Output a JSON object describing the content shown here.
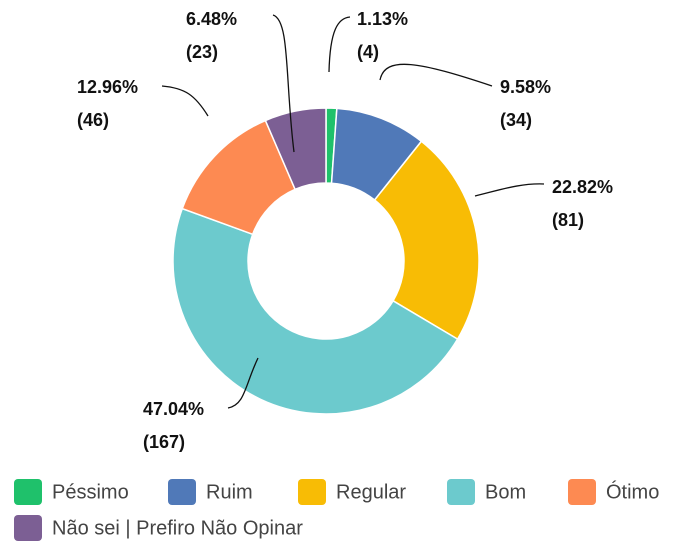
{
  "chart_data": {
    "type": "donut",
    "categories": [
      "Péssimo",
      "Ruim",
      "Regular",
      "Bom",
      "Ótimo",
      "Não sei | Prefiro Não Opinar"
    ],
    "values": [
      1.13,
      9.58,
      22.82,
      47.04,
      12.96,
      6.48
    ],
    "value_labels": [
      "1.13%",
      "9.58%",
      "22.82%",
      "47.04%",
      "12.96%",
      "6.48%"
    ],
    "counts": [
      4,
      34,
      81,
      167,
      46,
      23
    ],
    "count_labels": [
      "(4)",
      "(34)",
      "(81)",
      "(167)",
      "(46)",
      "(23)"
    ],
    "colors": [
      "#1fc16b",
      "#5079b8",
      "#f8bc05",
      "#6ccacd",
      "#fd8a52",
      "#7c5f94"
    ]
  }
}
